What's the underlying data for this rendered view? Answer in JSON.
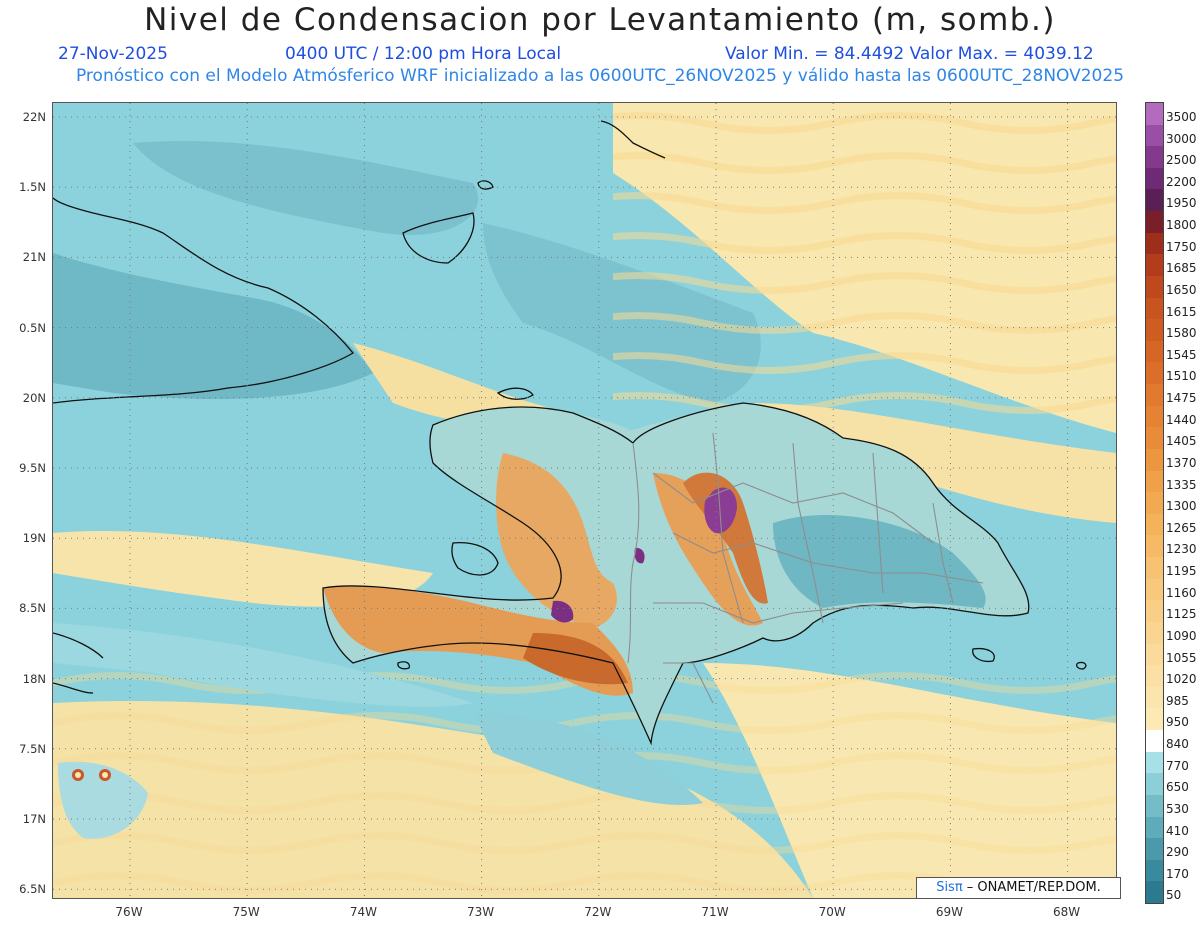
{
  "header": {
    "title": "Nivel de Condensacion por Levantamiento (m, somb.)",
    "date": "27-Nov-2025",
    "time": "0400 UTC / 12:00 pm Hora Local",
    "minmax": "Valor Min. = 84.4492  Valor Max. = 4039.12",
    "model_line": "Pronóstico con el Modelo Atmósferico WRF inicializado a las 0600UTC_26NOV2025 y válido hasta las  0600UTC_28NOV2025"
  },
  "axes": {
    "y_labels": [
      "22N",
      "1.5N",
      "21N",
      "0.5N",
      "20N",
      "9.5N",
      "19N",
      "8.5N",
      "18N",
      "7.5N",
      "17N",
      "6.5N"
    ],
    "x_labels": [
      "76W",
      "75W",
      "74W",
      "73W",
      "72W",
      "71W",
      "70W",
      "69W",
      "68W"
    ]
  },
  "legend": {
    "labels": [
      "3500",
      "3000",
      "2500",
      "2200",
      "1950",
      "1800",
      "1750",
      "1685",
      "1650",
      "1615",
      "1580",
      "1545",
      "1510",
      "1475",
      "1440",
      "1405",
      "1370",
      "1335",
      "1300",
      "1265",
      "1230",
      "1195",
      "1160",
      "1125",
      "1090",
      "1055",
      "1020",
      "985",
      "950",
      "840",
      "770",
      "650",
      "530",
      "410",
      "290",
      "170",
      "50"
    ],
    "colors": [
      "#b36bbd",
      "#9a4fa6",
      "#833a8c",
      "#6e2a75",
      "#5a1f55",
      "#7a1f2a",
      "#9c2e1a",
      "#b23c1c",
      "#c0481d",
      "#c85420",
      "#cf5d22",
      "#d56626",
      "#db6f2a",
      "#e1792e",
      "#e58233",
      "#e98c39",
      "#ec9640",
      "#efa048",
      "#f2a951",
      "#f4b25b",
      "#f6ba66",
      "#f7c271",
      "#f8c97c",
      "#f9cf87",
      "#fad592",
      "#fbda9c",
      "#fbdfa5",
      "#fce4ad",
      "#fce9b4",
      "#ffffff",
      "#a8e0e8",
      "#8ccfd8",
      "#73bcc8",
      "#5eabba",
      "#4b9aac",
      "#3a8a9e",
      "#2b7a90"
    ]
  },
  "credit": {
    "brand": "Sisπ",
    "text": " – ONAMET/REP.DOM."
  }
}
